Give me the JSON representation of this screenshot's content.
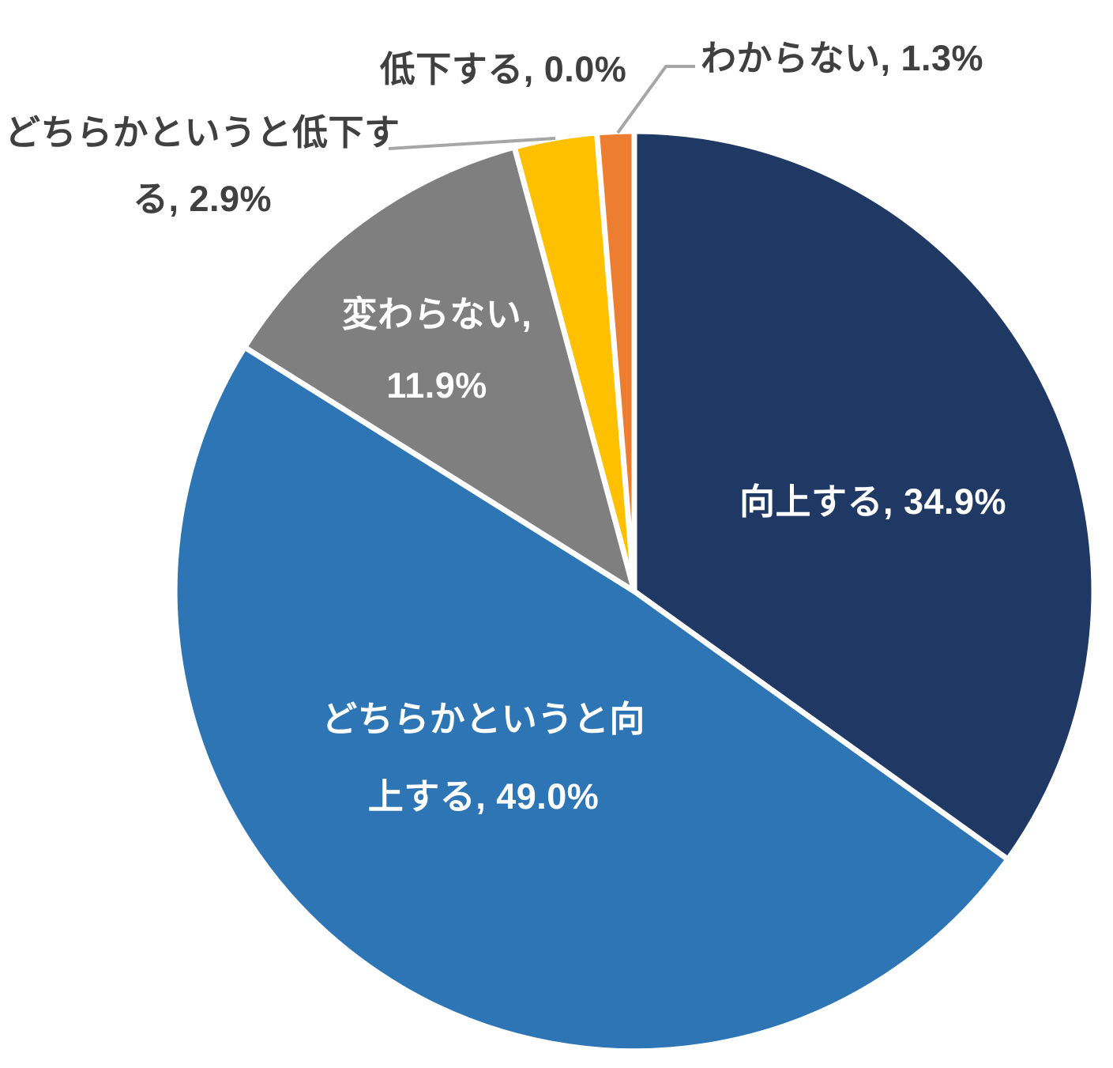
{
  "chart_data": {
    "type": "pie",
    "title": "",
    "legend": "none",
    "background": "#FFFFFF",
    "start_angle_deg": 0,
    "direction": "clockwise",
    "unit": "%",
    "leader_line_color": "#A6A6A6",
    "slices": [
      {
        "id": "koujou",
        "label": "向上する",
        "value": 34.9,
        "color": "#1F3864",
        "label_position": "inside",
        "label_color": "#FFFFFF",
        "lines": [
          "向上する, 34.9%"
        ]
      },
      {
        "id": "dochira-koujou",
        "label": "どちらかというと向上する",
        "value": 49.0,
        "color": "#2E75B6",
        "label_position": "inside",
        "label_color": "#FFFFFF",
        "lines": [
          "どちらかというと向",
          "上する, 49.0%"
        ]
      },
      {
        "id": "kawaranai",
        "label": "変わらない",
        "value": 11.9,
        "color": "#7F7F7F",
        "label_position": "inside",
        "label_color": "#FFFFFF",
        "lines": [
          "変わらない,",
          "11.9%"
        ]
      },
      {
        "id": "dochira-teika",
        "label": "どちらかというと低下する",
        "value": 2.9,
        "color": "#FFC000",
        "label_position": "outside",
        "label_color": "#404040",
        "leader_line": true,
        "lines": [
          "どちらかというと低下す",
          "る, 2.9%"
        ]
      },
      {
        "id": "teika",
        "label": "低下する",
        "value": 0.0,
        "color": null,
        "label_position": "outside",
        "label_color": "#404040",
        "leader_line": false,
        "lines": [
          "低下する, 0.0%"
        ]
      },
      {
        "id": "wakaranai",
        "label": "わからない",
        "value": 1.3,
        "color": "#ED7D31",
        "label_position": "outside",
        "label_color": "#404040",
        "leader_line": true,
        "lines": [
          "わからない, 1.3%"
        ]
      }
    ]
  }
}
